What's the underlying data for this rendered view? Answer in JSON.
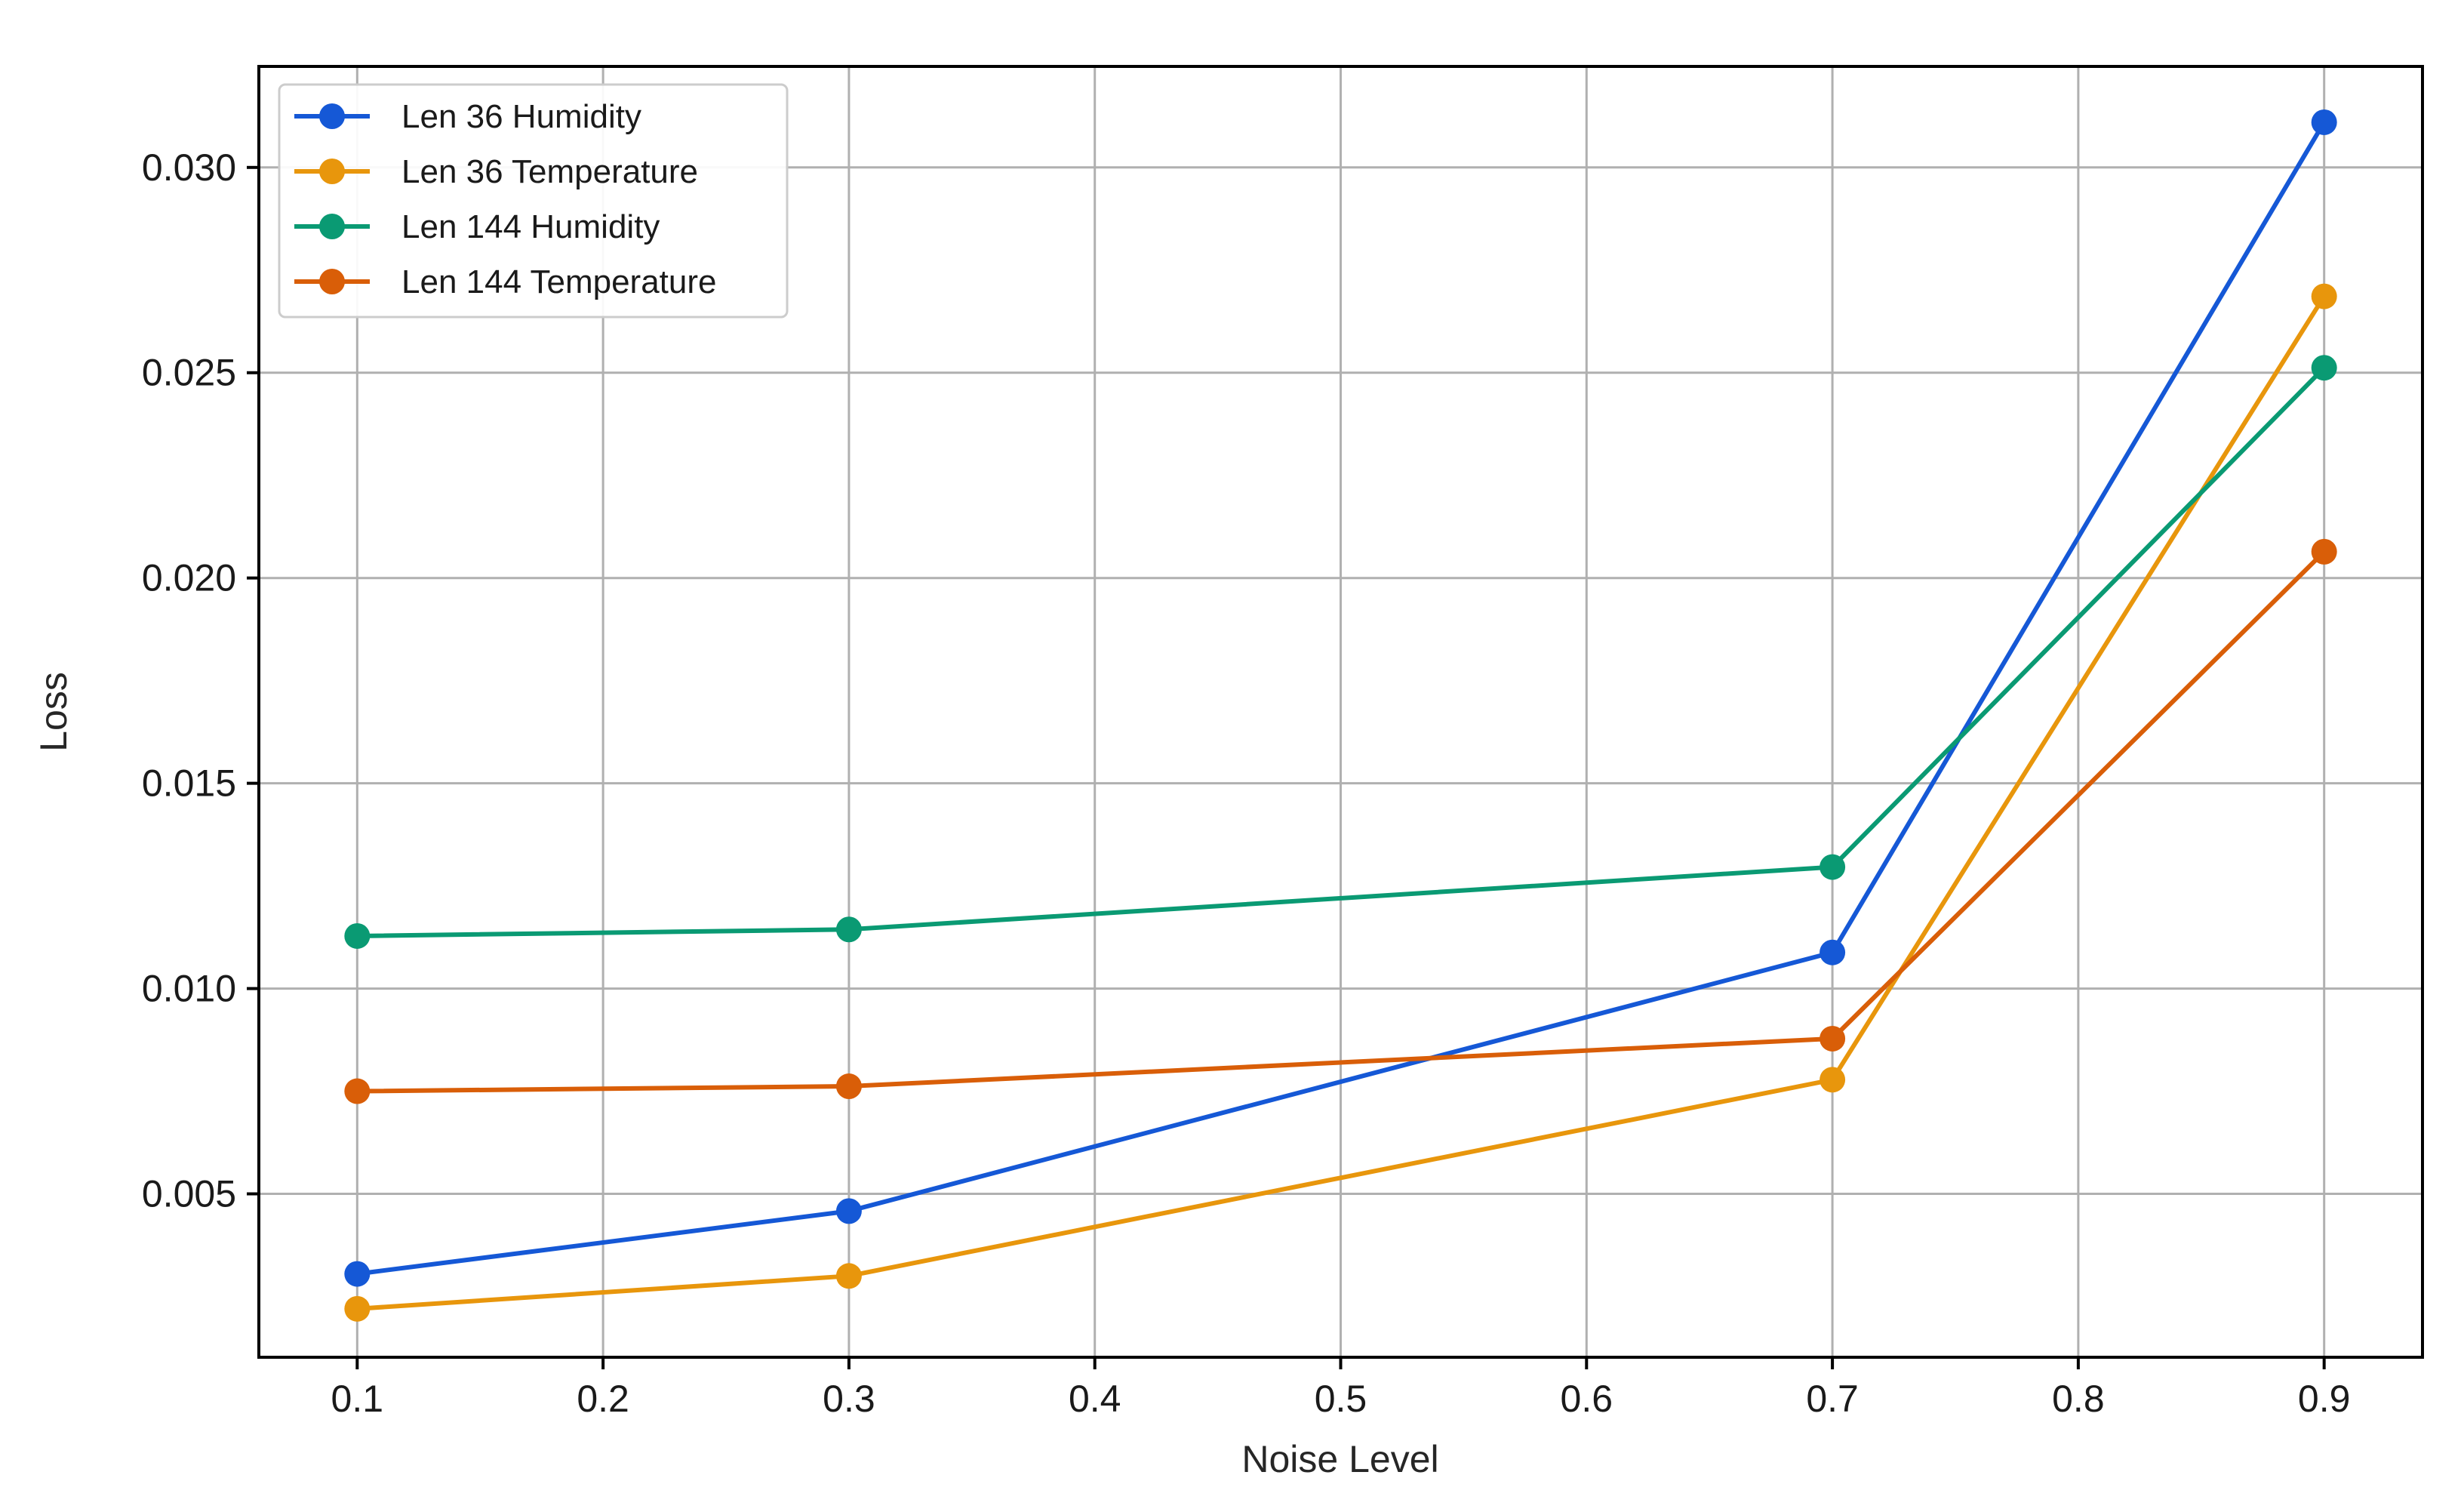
{
  "chart_data": {
    "type": "line",
    "title": "",
    "xlabel": "Noise Level",
    "ylabel": "Loss",
    "x": [
      0.1,
      0.3,
      0.7,
      0.9
    ],
    "xlim": [
      0.06,
      0.94
    ],
    "ylim": [
      0.00102,
      0.03246
    ],
    "xticks": [
      0.1,
      0.2,
      0.3,
      0.4,
      0.5,
      0.6,
      0.7,
      0.8,
      0.9
    ],
    "xtick_labels": [
      "0.1",
      "0.2",
      "0.3",
      "0.4",
      "0.5",
      "0.6",
      "0.7",
      "0.8",
      "0.9"
    ],
    "yticks": [
      0.005,
      0.01,
      0.015,
      0.02,
      0.025,
      0.03
    ],
    "ytick_labels": [
      "0.005",
      "0.010",
      "0.015",
      "0.020",
      "0.025",
      "0.030"
    ],
    "grid": true,
    "legend_position": "top-left",
    "series": [
      {
        "name": "Len 36 Humidity",
        "color": "#1558d6",
        "values": [
          0.00305,
          0.00458,
          0.01088,
          0.0311
        ]
      },
      {
        "name": "Len 36 Temperature",
        "color": "#e8960c",
        "values": [
          0.0022,
          0.003,
          0.00778,
          0.02686
        ]
      },
      {
        "name": "Len 144 Humidity",
        "color": "#0a9a73",
        "values": [
          0.01128,
          0.01144,
          0.01296,
          0.02512
        ]
      },
      {
        "name": "Len 144 Temperature",
        "color": "#d95e08",
        "values": [
          0.0075,
          0.00762,
          0.00878,
          0.02064
        ]
      }
    ]
  }
}
